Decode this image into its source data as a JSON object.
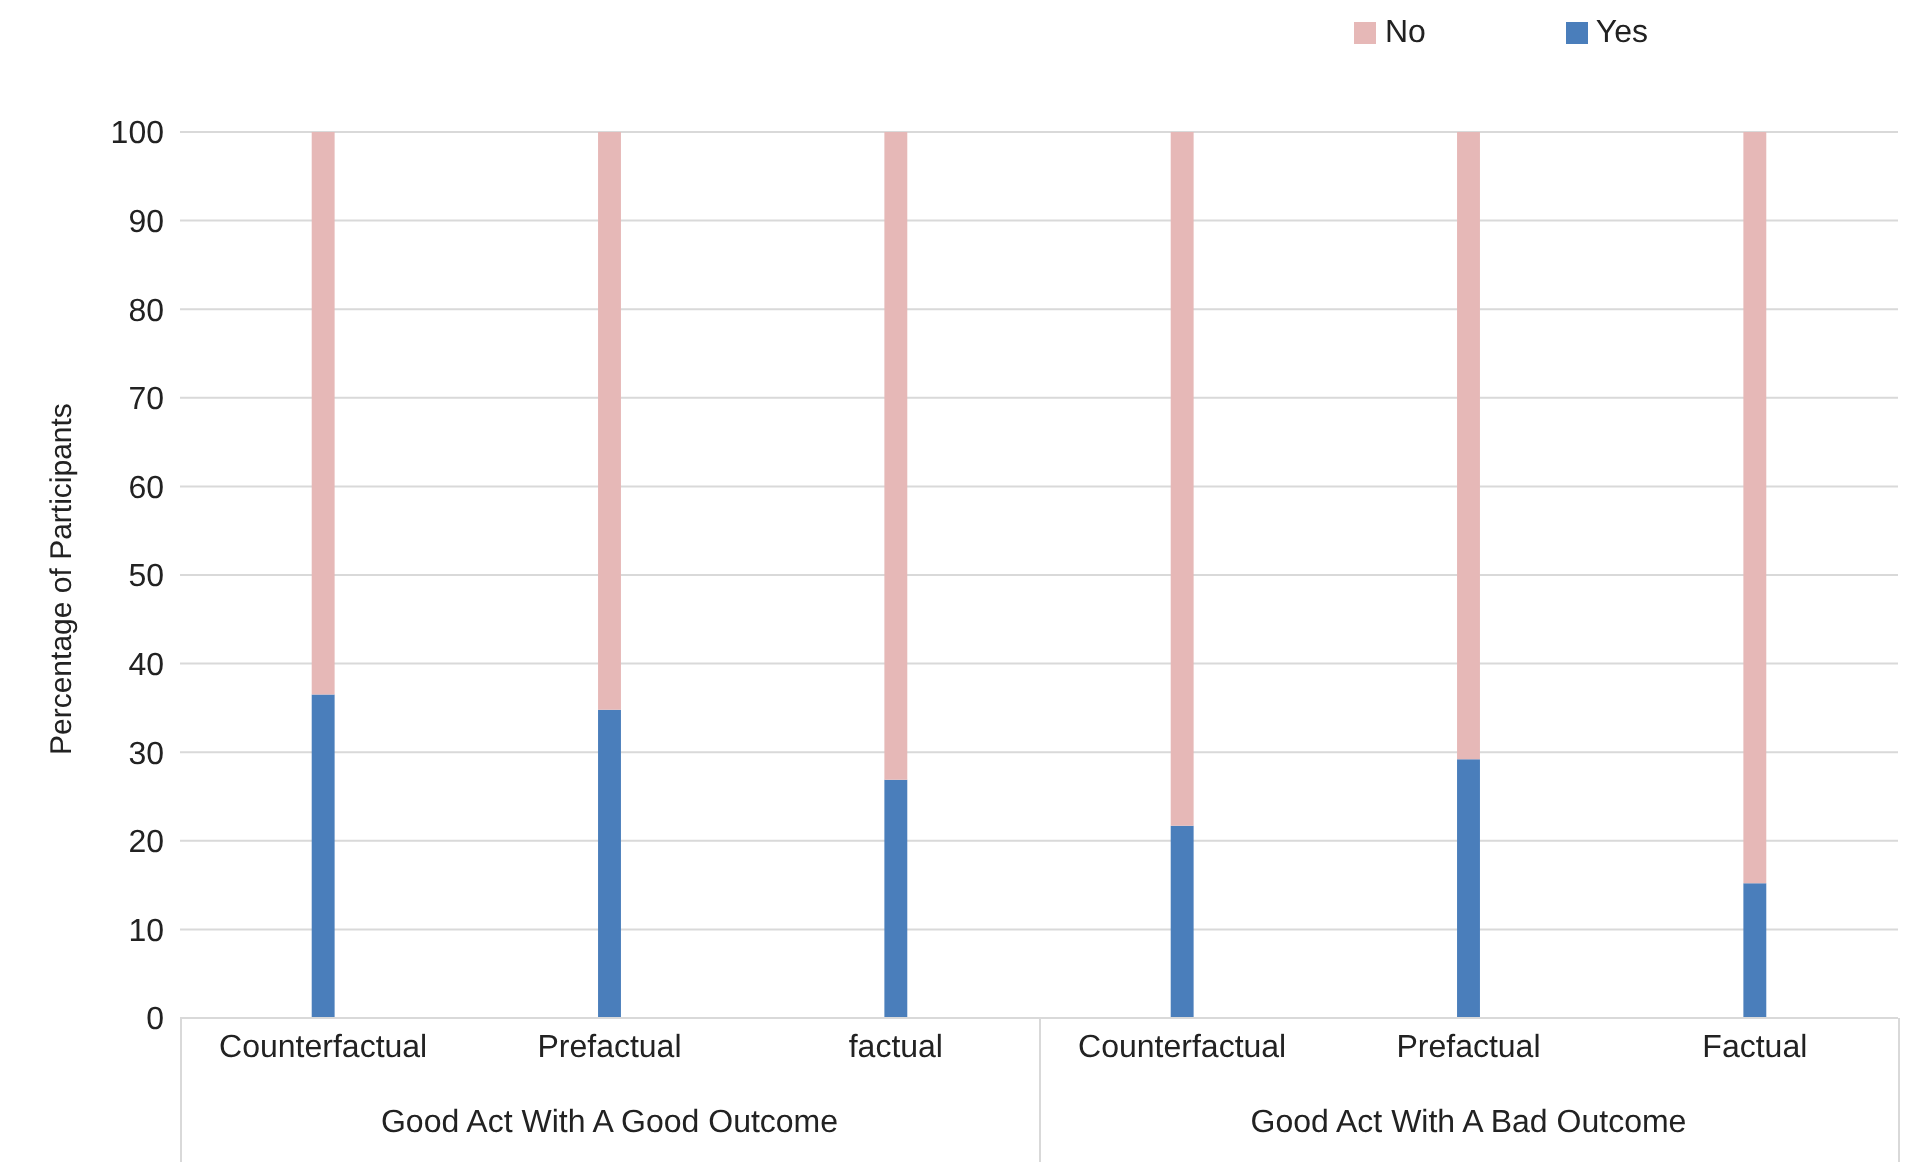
{
  "chart_data": {
    "type": "bar",
    "stacked": true,
    "ylabel": "Percentage of Participants",
    "categories": [
      "Counterfactual",
      "Prefactual",
      "factual",
      "Counterfactual",
      "Prefactual",
      "Factual"
    ],
    "series": [
      {
        "name": "Yes",
        "color": "#4a7ebb",
        "values": [
          36.5,
          34.8,
          26.9,
          21.7,
          29.2,
          15.2
        ]
      },
      {
        "name": "No",
        "color": "#e6b8b7",
        "values": [
          63.5,
          65.2,
          73.1,
          78.3,
          70.8,
          84.8
        ]
      }
    ],
    "ylim": [
      0,
      100
    ],
    "yticks": [
      0,
      10,
      20,
      30,
      40,
      50,
      60,
      70,
      80,
      90,
      100
    ],
    "grid": "y",
    "legend": "top right",
    "annotations": [
      "Good Act With A Good Outcome",
      "Good Act With A Bad Outcome"
    ]
  }
}
